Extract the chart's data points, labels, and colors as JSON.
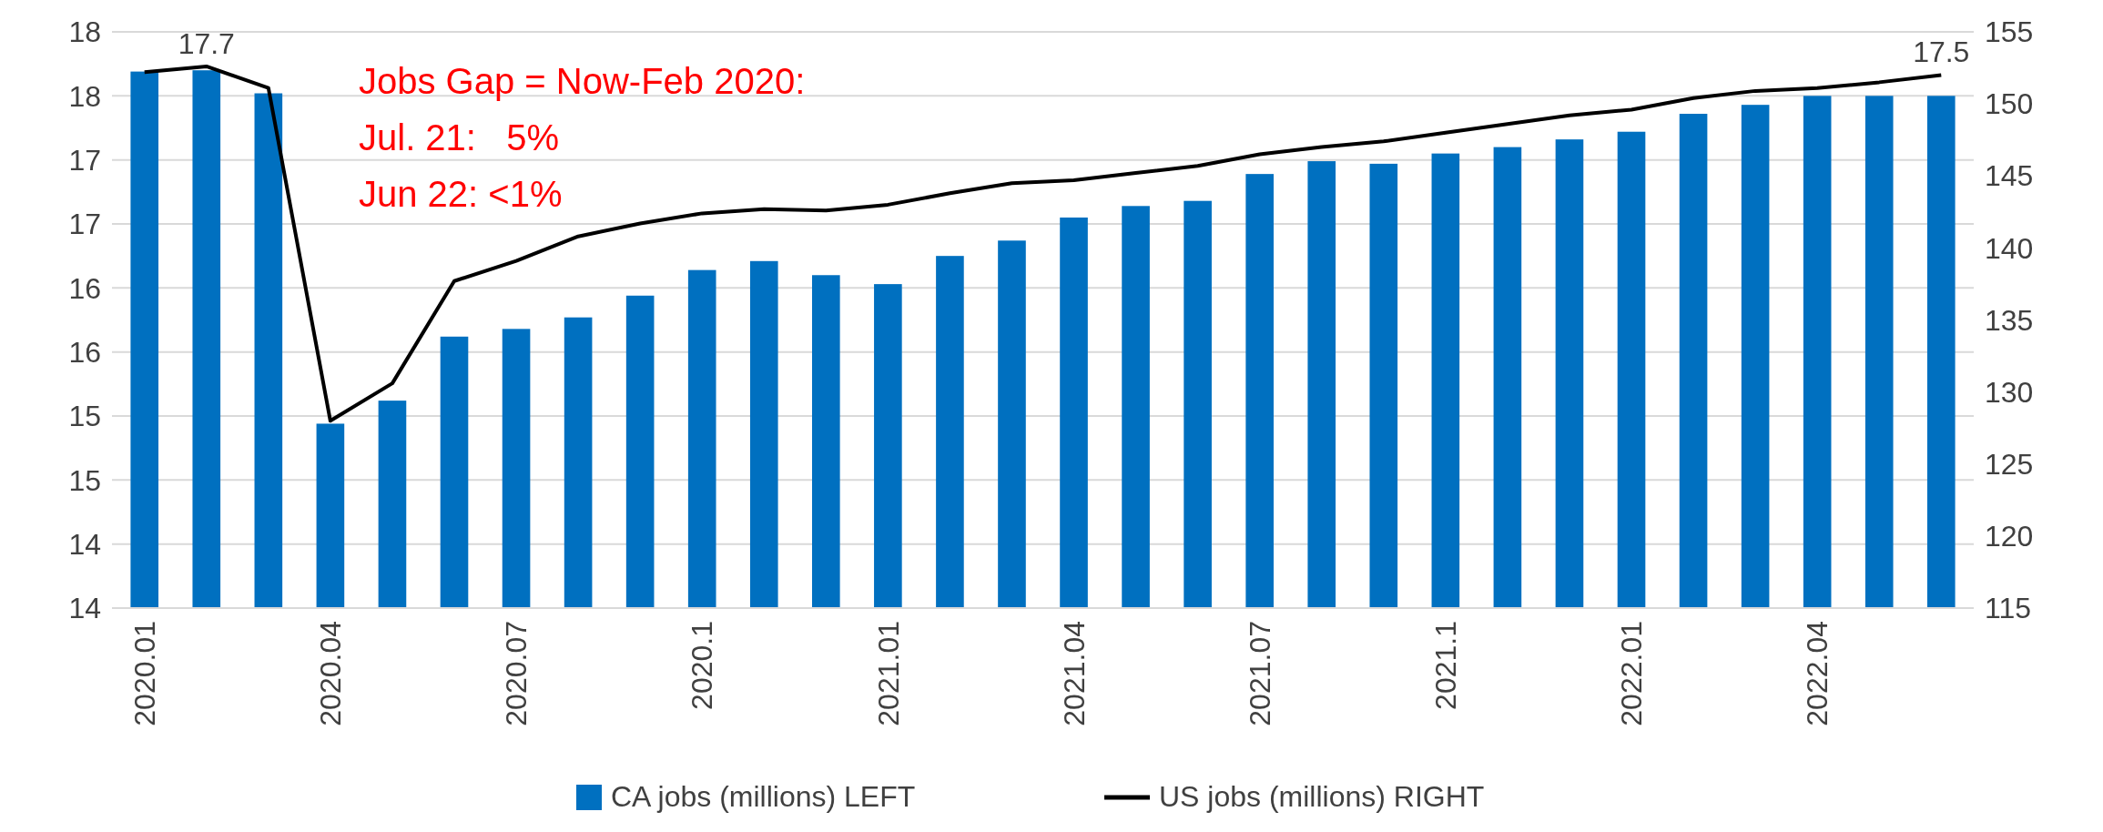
{
  "chart_data": {
    "type": "bar",
    "categories": [
      "2020.01",
      null,
      null,
      "2020.04",
      null,
      null,
      "2020.07",
      null,
      null,
      "2020.1",
      null,
      null,
      "2021.01",
      null,
      null,
      "2021.04",
      null,
      null,
      "2021.07",
      null,
      null,
      "2021.1",
      null,
      null,
      "2022.01",
      null,
      null,
      "2022.04",
      null,
      null
    ],
    "series": [
      {
        "name": "CA jobs (millions) LEFT",
        "color": "#0070c0",
        "values": [
          17.69,
          17.7,
          17.52,
          14.94,
          15.12,
          15.62,
          15.68,
          15.77,
          15.94,
          16.14,
          16.21,
          16.1,
          16.03,
          16.25,
          16.37,
          16.55,
          16.64,
          16.68,
          16.89,
          16.99,
          16.97,
          17.05,
          17.1,
          17.16,
          17.22,
          17.36,
          17.43,
          17.5,
          17.5,
          17.5
        ],
        "value_labels": [
          null,
          "17.7",
          null,
          null,
          null,
          null,
          null,
          null,
          null,
          null,
          null,
          null,
          null,
          null,
          null,
          null,
          null,
          null,
          null,
          null,
          null,
          null,
          null,
          null,
          null,
          null,
          null,
          null,
          null,
          "17.5"
        ]
      },
      {
        "name": "US jobs (millions) RIGHT",
        "type": "line",
        "axis": "y2",
        "color": "#000000",
        "values": [
          152.2,
          152.6,
          151.1,
          128.0,
          130.6,
          137.7,
          139.1,
          140.8,
          141.7,
          142.4,
          142.7,
          142.6,
          143.0,
          143.8,
          144.5,
          144.7,
          145.2,
          145.7,
          146.5,
          147.0,
          147.4,
          148.0,
          148.6,
          149.2,
          149.6,
          150.4,
          150.9,
          151.1,
          151.5,
          152.0
        ]
      }
    ],
    "ylim": [
      13.5,
      18
    ],
    "yticks": [
      {
        "value": 13.5,
        "label": "14"
      },
      {
        "value": 14,
        "label": "14"
      },
      {
        "value": 14.5,
        "label": "15"
      },
      {
        "value": 15,
        "label": "15"
      },
      {
        "value": 15.5,
        "label": "16"
      },
      {
        "value": 16,
        "label": "16"
      },
      {
        "value": 16.5,
        "label": "17"
      },
      {
        "value": 17,
        "label": "17"
      },
      {
        "value": 17.5,
        "label": "18"
      },
      {
        "value": 18,
        "label": "18"
      }
    ],
    "y2lim": [
      115,
      155
    ],
    "y2ticks": [
      115,
      120,
      125,
      130,
      135,
      140,
      145,
      150,
      155
    ],
    "grid": "y",
    "legend": "bottom",
    "marker": "none",
    "line_style": "solid",
    "annotations": [
      "Jobs Gap = Now-Feb 2020:",
      "Jul. 21:   5%",
      "Jun 22: <1%"
    ]
  }
}
